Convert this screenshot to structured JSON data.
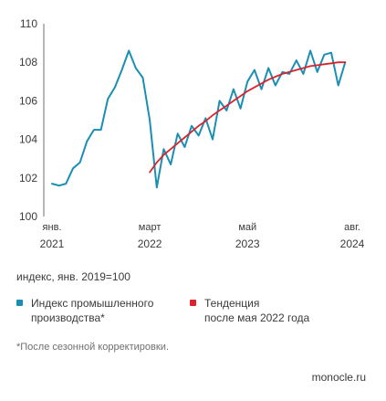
{
  "chart_data": {
    "type": "line",
    "ylim": [
      100,
      110
    ],
    "y_ticks": [
      100,
      102,
      104,
      106,
      108,
      110
    ],
    "x_tick_labels": [
      {
        "month": "янв.",
        "year": "2021",
        "index": 0
      },
      {
        "month": "март",
        "year": "2022",
        "index": 14
      },
      {
        "month": "май",
        "year": "2023",
        "index": 28
      },
      {
        "month": "авг.",
        "year": "2024",
        "index": 43
      }
    ],
    "grid": false,
    "legend_position": "bottom",
    "series": [
      {
        "name": "Индекс промышленного\nпроизводства*",
        "color": "#1a8fb3",
        "start_index": 0,
        "values": [
          101.7,
          101.6,
          101.7,
          102.5,
          102.8,
          103.9,
          104.5,
          104.5,
          106.1,
          106.7,
          107.6,
          108.6,
          107.7,
          107.2,
          105.0,
          101.5,
          103.5,
          102.7,
          104.3,
          103.6,
          104.7,
          104.2,
          105.1,
          104.0,
          106.0,
          105.5,
          106.6,
          105.6,
          107.0,
          107.6,
          106.6,
          107.7,
          106.8,
          107.5,
          107.4,
          108.1,
          107.4,
          108.6,
          107.5,
          108.4,
          108.5,
          106.8,
          108.0
        ]
      },
      {
        "name": "Тенденция\nпосле мая 2022 года",
        "color": "#d9242e",
        "start_index": 14,
        "values": [
          102.3,
          102.8,
          103.2,
          103.5,
          103.8,
          104.1,
          104.4,
          104.7,
          104.95,
          105.25,
          105.5,
          105.75,
          106.0,
          106.25,
          106.5,
          106.7,
          106.9,
          107.1,
          107.25,
          107.4,
          107.5,
          107.6,
          107.7,
          107.8,
          107.85,
          107.9,
          107.95,
          108.0,
          108.0
        ]
      }
    ]
  },
  "caption": "индекс, янв. 2019=100",
  "footnote": "*После сезонной корректировки.",
  "source": "monocle.ru"
}
